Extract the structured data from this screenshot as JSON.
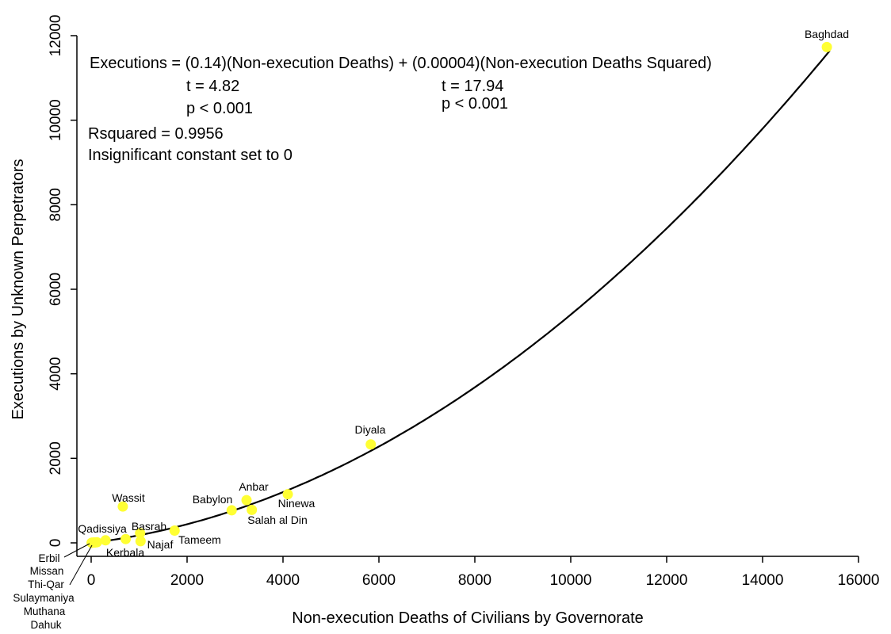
{
  "chart_data": {
    "type": "scatter",
    "xlabel": "Non-execution Deaths of Civilians by Governorate",
    "ylabel": "Executions by Unknown Perpetrators",
    "xlim": [
      0,
      16000
    ],
    "ylim": [
      0,
      12000
    ],
    "x_ticks": [
      "0",
      "2000",
      "4000",
      "6000",
      "8000",
      "10000",
      "12000",
      "14000",
      "16000"
    ],
    "y_ticks": [
      "0",
      "2000",
      "4000",
      "6000",
      "8000",
      "10000",
      "12000"
    ],
    "point_color": "#ffff33",
    "grid": false,
    "fit": {
      "linear_coef": 0.14,
      "quadratic_coef": 4e-05,
      "constant": 0
    },
    "annotations": {
      "equation": "Executions = (0.14)(Non-execution Deaths) + (0.00004)(Non-execution Deaths Squared)",
      "t1": "t = 4.82",
      "p1": "p < 0.001",
      "t2": "t = 17.94",
      "p2": "p < 0.001",
      "rsquared": "Rsquared = 0.9956",
      "constant_note": "Insignificant constant set to 0"
    },
    "points": [
      {
        "name": "Baghdad",
        "x": 15340,
        "y": 11730
      },
      {
        "name": "Diyala",
        "x": 5830,
        "y": 2330
      },
      {
        "name": "Ninewa",
        "x": 4100,
        "y": 1150
      },
      {
        "name": "Anbar",
        "x": 3240,
        "y": 1010
      },
      {
        "name": "Salah al Din",
        "x": 3350,
        "y": 780
      },
      {
        "name": "Babylon",
        "x": 2930,
        "y": 770
      },
      {
        "name": "Tameem",
        "x": 1740,
        "y": 290
      },
      {
        "name": "Wassit",
        "x": 660,
        "y": 860
      },
      {
        "name": "Basrah",
        "x": 1020,
        "y": 230
      },
      {
        "name": "Najaf",
        "x": 1030,
        "y": 40
      },
      {
        "name": "Kerbala",
        "x": 720,
        "y": 90
      },
      {
        "name": "Qadissiya",
        "x": 300,
        "y": 60
      },
      {
        "name": "Erbil",
        "x": 20,
        "y": 5
      },
      {
        "name": "Missan",
        "x": 60,
        "y": 10
      },
      {
        "name": "Thi-Qar",
        "x": 120,
        "y": 15
      },
      {
        "name": "Sulaymaniya",
        "x": 15,
        "y": 3
      },
      {
        "name": "Muthana",
        "x": 80,
        "y": 8
      },
      {
        "name": "Dahuk",
        "x": 10,
        "y": 2
      }
    ]
  }
}
